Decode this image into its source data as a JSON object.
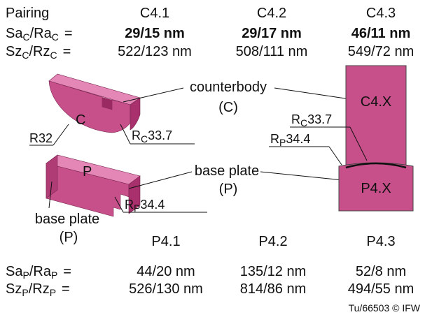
{
  "header": {
    "pairing_label": "Pairing",
    "sa_label": "Sa",
    "ra_label": "Ra",
    "sz_label": "Sz",
    "rz_label": "Rz",
    "sub_c": "C",
    "sub_p": "P",
    "slash": "/",
    "equals": "="
  },
  "counterbodies": [
    {
      "name": "C4.1",
      "sa_ra": "29/15 nm",
      "sz_rz": "522/123 nm"
    },
    {
      "name": "C4.2",
      "sa_ra": "29/17 nm",
      "sz_rz": "508/111 nm"
    },
    {
      "name": "C4.3",
      "sa_ra": "46/11 nm",
      "sz_rz": "549/72 nm"
    }
  ],
  "base_plates": [
    {
      "name": "P4.1",
      "sa_ra": "44/20 nm",
      "sz_rz": "526/130 nm"
    },
    {
      "name": "P4.2",
      "sa_ra": "135/12 nm",
      "sz_rz": "814/86 nm"
    },
    {
      "name": "P4.3",
      "sa_ra": "52/8 nm",
      "sz_rz": "494/55 nm"
    }
  ],
  "diagram": {
    "counterbody_label": "counterbody",
    "counterbody_abbr": "(C)",
    "base_plate_label": "base plate",
    "base_plate_abbr": "(P)",
    "left_base_plate_label": "base plate",
    "left_base_plate_abbr": "(P)",
    "c_letter": "C",
    "p_letter": "P",
    "r32": "R32",
    "rc_letter": "R",
    "rc_sub": "C",
    "rc_value": "33.7",
    "rp_letter": "R",
    "rp_sub": "P",
    "rp_value": "34.4",
    "cx_label": "C4.X",
    "px_label": "P4.X"
  },
  "footer": {
    "credit": "Tu/66503 © IFW"
  },
  "colors": {
    "body": "#c8508a",
    "top": "#e487b6",
    "side": "#a8306c",
    "outline": "#333333"
  }
}
